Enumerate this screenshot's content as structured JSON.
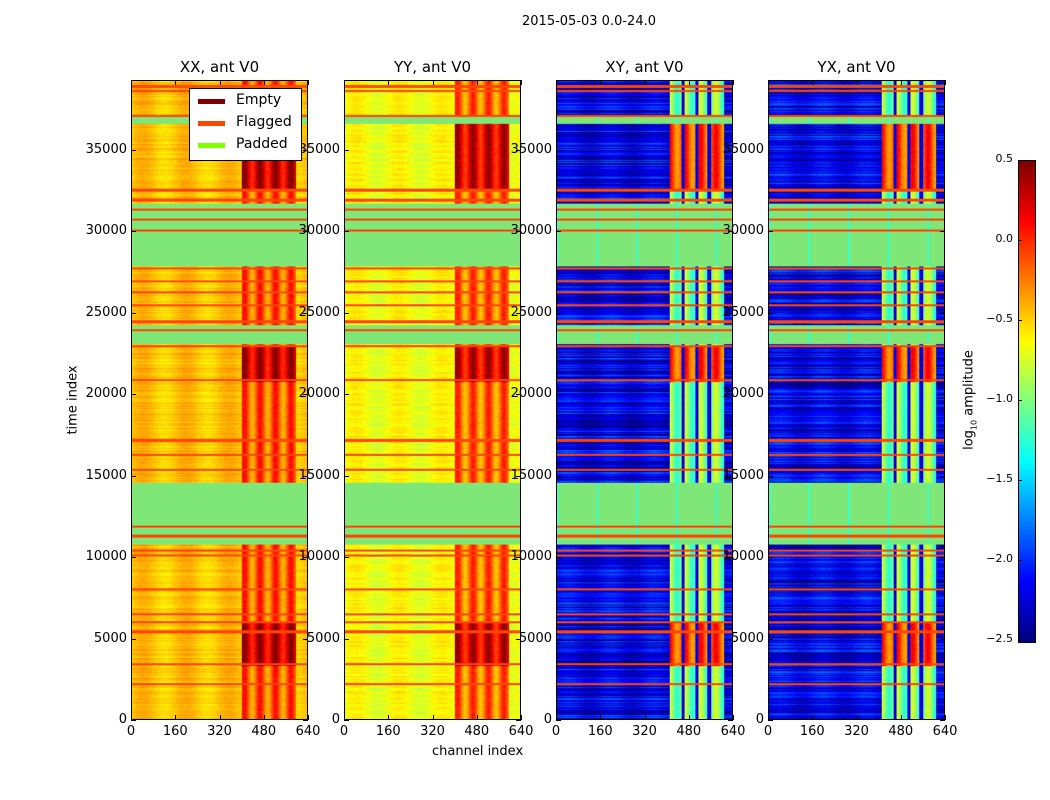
{
  "figure_title": "2015-05-03 0.0-24.0",
  "chart_data": {
    "type": "heatmap",
    "title": "2015-05-03 0.0-24.0",
    "xlabel": "channel index",
    "ylabel": "time index",
    "xlim": [
      0,
      640
    ],
    "ylim": [
      0,
      39300
    ],
    "xticks": [
      0,
      160,
      320,
      480,
      640
    ],
    "yticks": [
      0,
      5000,
      10000,
      15000,
      20000,
      25000,
      30000,
      35000
    ],
    "panels": [
      {
        "title": "XX, ant V0",
        "base_level": -0.45,
        "hot_channels": [
          400,
          600
        ],
        "hot_level": -0.15
      },
      {
        "title": "YY, ant V0",
        "base_level": -0.65,
        "hot_channels": [
          400,
          600
        ],
        "hot_level": -0.2
      },
      {
        "title": "XY, ant V0",
        "base_level": -2.2,
        "hot_channels": [
          410,
          610
        ],
        "hot_level": -1.0
      },
      {
        "title": "YX, ant V0",
        "base_level": -2.2,
        "hot_channels": [
          410,
          610
        ],
        "hot_level": -1.0
      }
    ],
    "flagged_rows": [
      39000,
      38700,
      37200,
      32600,
      32000,
      31400,
      30800,
      30100,
      27800,
      27000,
      26300,
      25500,
      24500,
      24000,
      23000,
      20900,
      17200,
      16300,
      15400,
      11900,
      11300,
      10400,
      10100,
      8000,
      6500,
      6000,
      5400,
      3400,
      2200
    ],
    "padded_bands": [
      [
        36700,
        37100
      ],
      [
        27900,
        31800
      ],
      [
        23100,
        24300
      ],
      [
        10800,
        14600
      ]
    ],
    "hot_bands": [
      [
        3300,
        6000
      ],
      [
        20800,
        23000
      ],
      [
        32500,
        37000
      ]
    ],
    "legend": {
      "placement": "top-right of first panel",
      "entries": [
        {
          "label": "Empty",
          "color": "#800000"
        },
        {
          "label": "Flagged",
          "color": "#ff4500"
        },
        {
          "label": "Padded",
          "color": "#7fff00"
        }
      ]
    },
    "colorbar": {
      "label_prefix": "log",
      "label_sub": "10",
      "label_suffix": " amplitude",
      "range": [
        -2.5,
        0.5
      ],
      "ticks": [
        "0.5",
        "0.0",
        "−0.5",
        "−1.0",
        "−1.5",
        "−2.0",
        "−2.5"
      ],
      "tick_values": [
        0.5,
        0.0,
        -0.5,
        -1.0,
        -1.5,
        -2.0,
        -2.5
      ],
      "colormap": "jet"
    }
  }
}
